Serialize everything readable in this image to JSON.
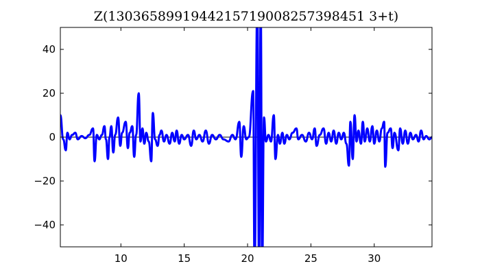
{
  "chart_data": {
    "type": "line",
    "title": "Z(130365899194421571900825739845 13+t)",
    "title_text": "Z(1303658991944215719008257398451 3+t)",
    "xlabel": "",
    "ylabel": "",
    "xlim": [
      5.22,
      34.56
    ],
    "ylim": [
      -50,
      50
    ],
    "xticks": [
      10,
      15,
      20,
      25,
      30
    ],
    "yticks": [
      -40,
      -20,
      0,
      20,
      40
    ],
    "grid": false,
    "line_color": "#0000ff",
    "series": [
      {
        "points": [
          [
            5.22,
            10
          ],
          [
            5.45,
            -1
          ],
          [
            5.65,
            -6
          ],
          [
            5.78,
            2
          ],
          [
            5.95,
            -1
          ],
          [
            6.15,
            1
          ],
          [
            6.4,
            2
          ],
          [
            6.6,
            -1
          ],
          [
            6.9,
            0.5
          ],
          [
            7.2,
            -0.5
          ],
          [
            7.5,
            1
          ],
          [
            7.8,
            4
          ],
          [
            7.92,
            -11
          ],
          [
            8.1,
            1
          ],
          [
            8.3,
            -1
          ],
          [
            8.5,
            1
          ],
          [
            8.7,
            5
          ],
          [
            8.82,
            -1
          ],
          [
            8.98,
            -10
          ],
          [
            9.1,
            0
          ],
          [
            9.24,
            5
          ],
          [
            9.4,
            -7
          ],
          [
            9.55,
            1
          ],
          [
            9.78,
            9
          ],
          [
            9.95,
            -4
          ],
          [
            10.1,
            2
          ],
          [
            10.38,
            7
          ],
          [
            10.55,
            -5
          ],
          [
            10.7,
            2
          ],
          [
            10.9,
            5
          ],
          [
            11.05,
            -9
          ],
          [
            11.2,
            1
          ],
          [
            11.41,
            20
          ],
          [
            11.55,
            -2
          ],
          [
            11.7,
            4
          ],
          [
            11.85,
            -3
          ],
          [
            12.0,
            2
          ],
          [
            12.2,
            -2
          ],
          [
            12.4,
            -11
          ],
          [
            12.52,
            11
          ],
          [
            12.7,
            -1
          ],
          [
            12.9,
            -4
          ],
          [
            13.05,
            1
          ],
          [
            13.2,
            3
          ],
          [
            13.4,
            -2
          ],
          [
            13.6,
            1
          ],
          [
            13.85,
            -3
          ],
          [
            14.05,
            2
          ],
          [
            14.25,
            -2
          ],
          [
            14.4,
            3
          ],
          [
            14.6,
            -3
          ],
          [
            14.8,
            1
          ],
          [
            15.0,
            -1
          ],
          [
            15.3,
            1
          ],
          [
            15.55,
            -4
          ],
          [
            15.75,
            3
          ],
          [
            15.95,
            -1
          ],
          [
            16.2,
            1
          ],
          [
            16.45,
            -2
          ],
          [
            16.7,
            3
          ],
          [
            16.95,
            -3
          ],
          [
            17.2,
            1
          ],
          [
            17.5,
            -1
          ],
          [
            17.8,
            1
          ],
          [
            18.1,
            -1
          ],
          [
            18.5,
            -2
          ],
          [
            18.8,
            1
          ],
          [
            19.05,
            -1
          ],
          [
            19.35,
            7
          ],
          [
            19.5,
            -9
          ],
          [
            19.7,
            5
          ],
          [
            19.9,
            -1
          ],
          [
            20.1,
            0
          ],
          [
            20.44,
            21
          ],
          [
            20.55,
            -60
          ],
          [
            20.77,
            60
          ],
          [
            20.9,
            -60
          ],
          [
            21.04,
            60
          ],
          [
            21.15,
            -60
          ],
          [
            21.3,
            9
          ],
          [
            21.45,
            -2
          ],
          [
            21.65,
            1
          ],
          [
            21.85,
            -2
          ],
          [
            22.07,
            10
          ],
          [
            22.2,
            -10
          ],
          [
            22.4,
            1
          ],
          [
            22.55,
            -3
          ],
          [
            22.75,
            2
          ],
          [
            22.9,
            -3
          ],
          [
            23.1,
            1
          ],
          [
            23.3,
            -1
          ],
          [
            23.55,
            2
          ],
          [
            23.86,
            4
          ],
          [
            24.0,
            -1
          ],
          [
            24.3,
            1
          ],
          [
            24.6,
            -2
          ],
          [
            24.85,
            2
          ],
          [
            25.1,
            -1
          ],
          [
            25.3,
            4
          ],
          [
            25.45,
            -4
          ],
          [
            25.7,
            1
          ],
          [
            26.0,
            4
          ],
          [
            26.2,
            -3
          ],
          [
            26.4,
            2
          ],
          [
            26.6,
            -2
          ],
          [
            26.8,
            3
          ],
          [
            27.0,
            -3
          ],
          [
            27.2,
            2
          ],
          [
            27.4,
            -1
          ],
          [
            27.6,
            2
          ],
          [
            27.8,
            -3
          ],
          [
            28.0,
            -13
          ],
          [
            28.12,
            7
          ],
          [
            28.3,
            -10
          ],
          [
            28.45,
            10
          ],
          [
            28.6,
            -2
          ],
          [
            28.75,
            3
          ],
          [
            28.95,
            -3
          ],
          [
            29.1,
            7
          ],
          [
            29.25,
            -2
          ],
          [
            29.45,
            4
          ],
          [
            29.65,
            -2
          ],
          [
            29.85,
            5
          ],
          [
            30.0,
            -3
          ],
          [
            30.2,
            3
          ],
          [
            30.4,
            -2
          ],
          [
            30.6,
            4
          ],
          [
            30.78,
            7
          ],
          [
            30.87,
            -13.5
          ],
          [
            31.05,
            2
          ],
          [
            31.3,
            4
          ],
          [
            31.45,
            -5
          ],
          [
            31.6,
            2
          ],
          [
            31.9,
            -6
          ],
          [
            32.05,
            4
          ],
          [
            32.25,
            -3
          ],
          [
            32.45,
            3
          ],
          [
            32.65,
            -3
          ],
          [
            32.85,
            2
          ],
          [
            33.05,
            -1
          ],
          [
            33.3,
            1
          ],
          [
            33.5,
            -2
          ],
          [
            33.7,
            3
          ],
          [
            33.9,
            -1
          ],
          [
            34.1,
            0.5
          ],
          [
            34.35,
            -1
          ],
          [
            34.56,
            0
          ]
        ]
      }
    ]
  }
}
